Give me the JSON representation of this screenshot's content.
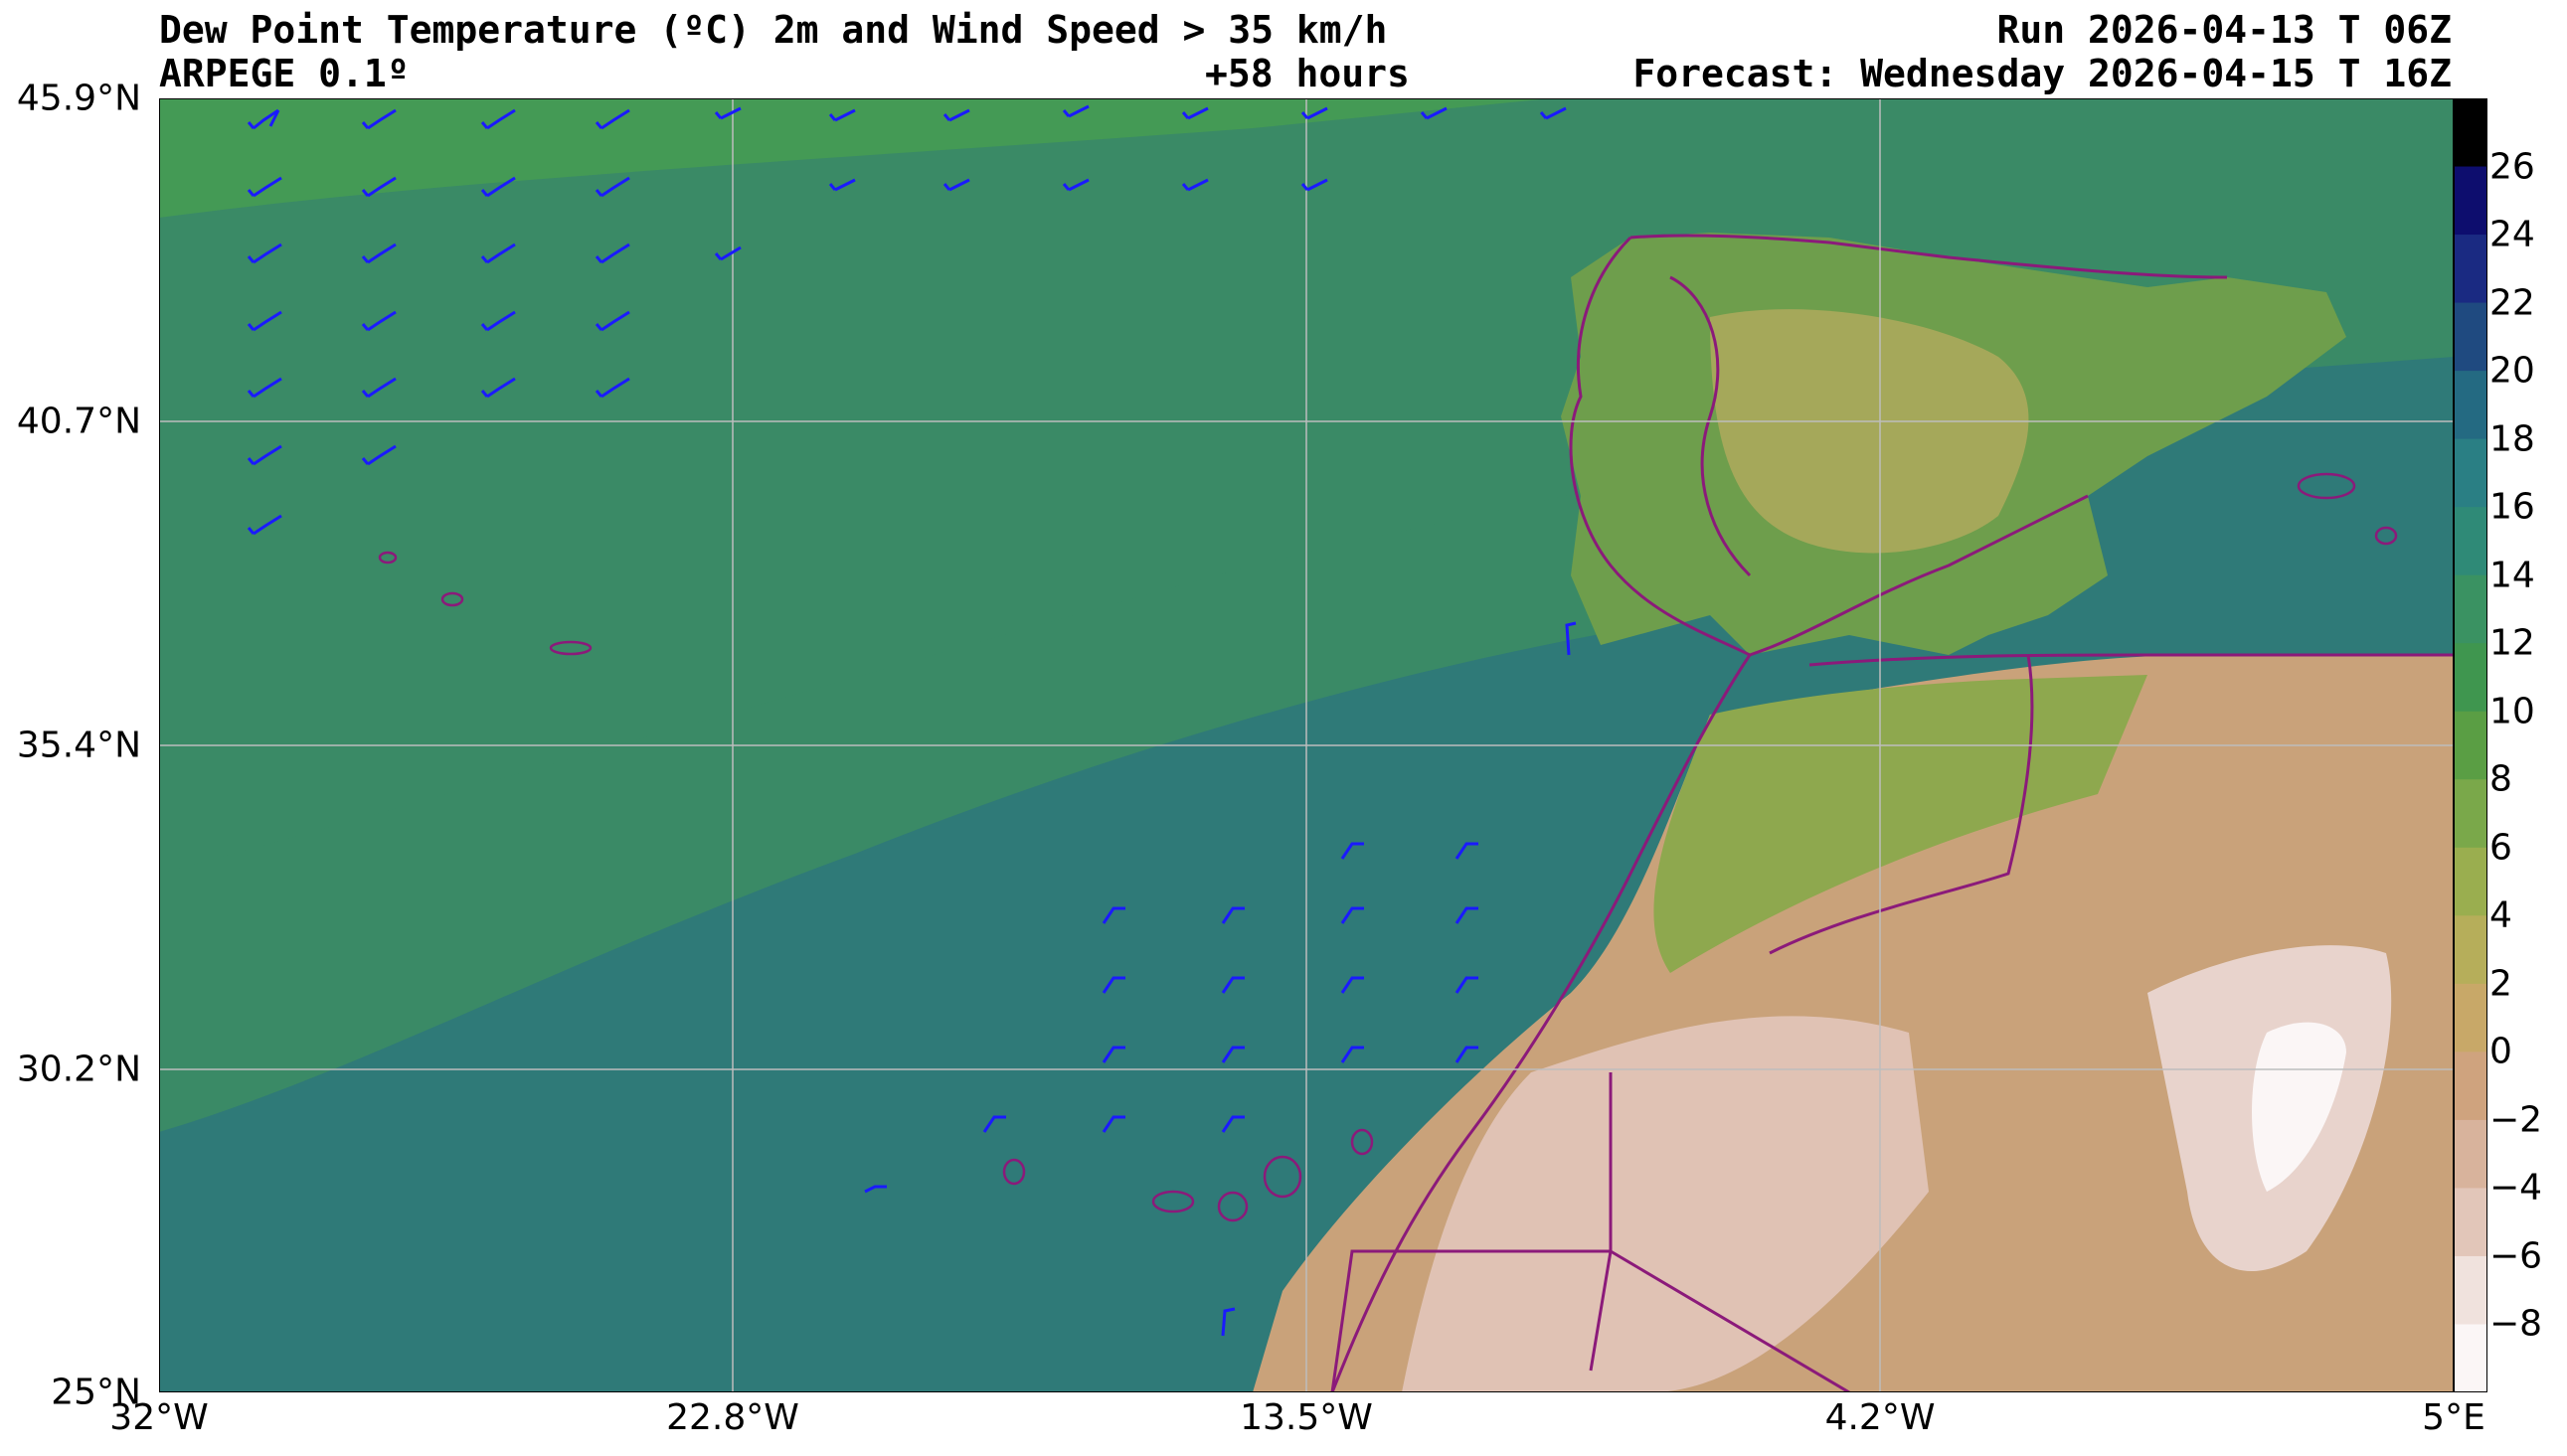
{
  "header": {
    "title_line1": "Dew Point Temperature (ºC) 2m and Wind Speed > 35 km/h",
    "model": "ARPEGE 0.1º",
    "lead_time": "+58 hours",
    "run": "Run 2026-04-13 T 06Z",
    "forecast": "Forecast: Wednesday 2026-04-15 T 16Z"
  },
  "map": {
    "lat_ticks": [
      "45.9°N",
      "40.7°N",
      "35.4°N",
      "30.2°N",
      "25°N"
    ],
    "lon_ticks": [
      "32°W",
      "22.8°W",
      "13.5°W",
      "4.2°W",
      "5°E"
    ],
    "extent": {
      "lon_min": -32,
      "lon_max": 5,
      "lat_min": 25,
      "lat_max": 45.9
    },
    "colors": {
      "ocean": "#3a8a66",
      "atlantic_band": "#2f7a78",
      "iberia": "#6e9e4c",
      "sahara": "#d9b69a",
      "border": "#8b1a7a",
      "wind_barbs": "#1a1aff"
    }
  },
  "colorbar": {
    "labels": [
      "26",
      "24",
      "22",
      "20",
      "18",
      "16",
      "14",
      "12",
      "10",
      "8",
      "6",
      "4",
      "2",
      "0",
      "−2",
      "−4",
      "−6",
      "−8"
    ],
    "colors": [
      "#000000",
      "#0d0d6e",
      "#1a2a82",
      "#1f4a80",
      "#246a82",
      "#2a7f84",
      "#2f8a77",
      "#3a9262",
      "#3f964f",
      "#5a9e44",
      "#7aa84a",
      "#9aae4f",
      "#b6ae5a",
      "#c8a868",
      "#cfa37e",
      "#d8b39c",
      "#e2c6b9",
      "#f0e2dd",
      "#fbf6f6"
    ]
  }
}
